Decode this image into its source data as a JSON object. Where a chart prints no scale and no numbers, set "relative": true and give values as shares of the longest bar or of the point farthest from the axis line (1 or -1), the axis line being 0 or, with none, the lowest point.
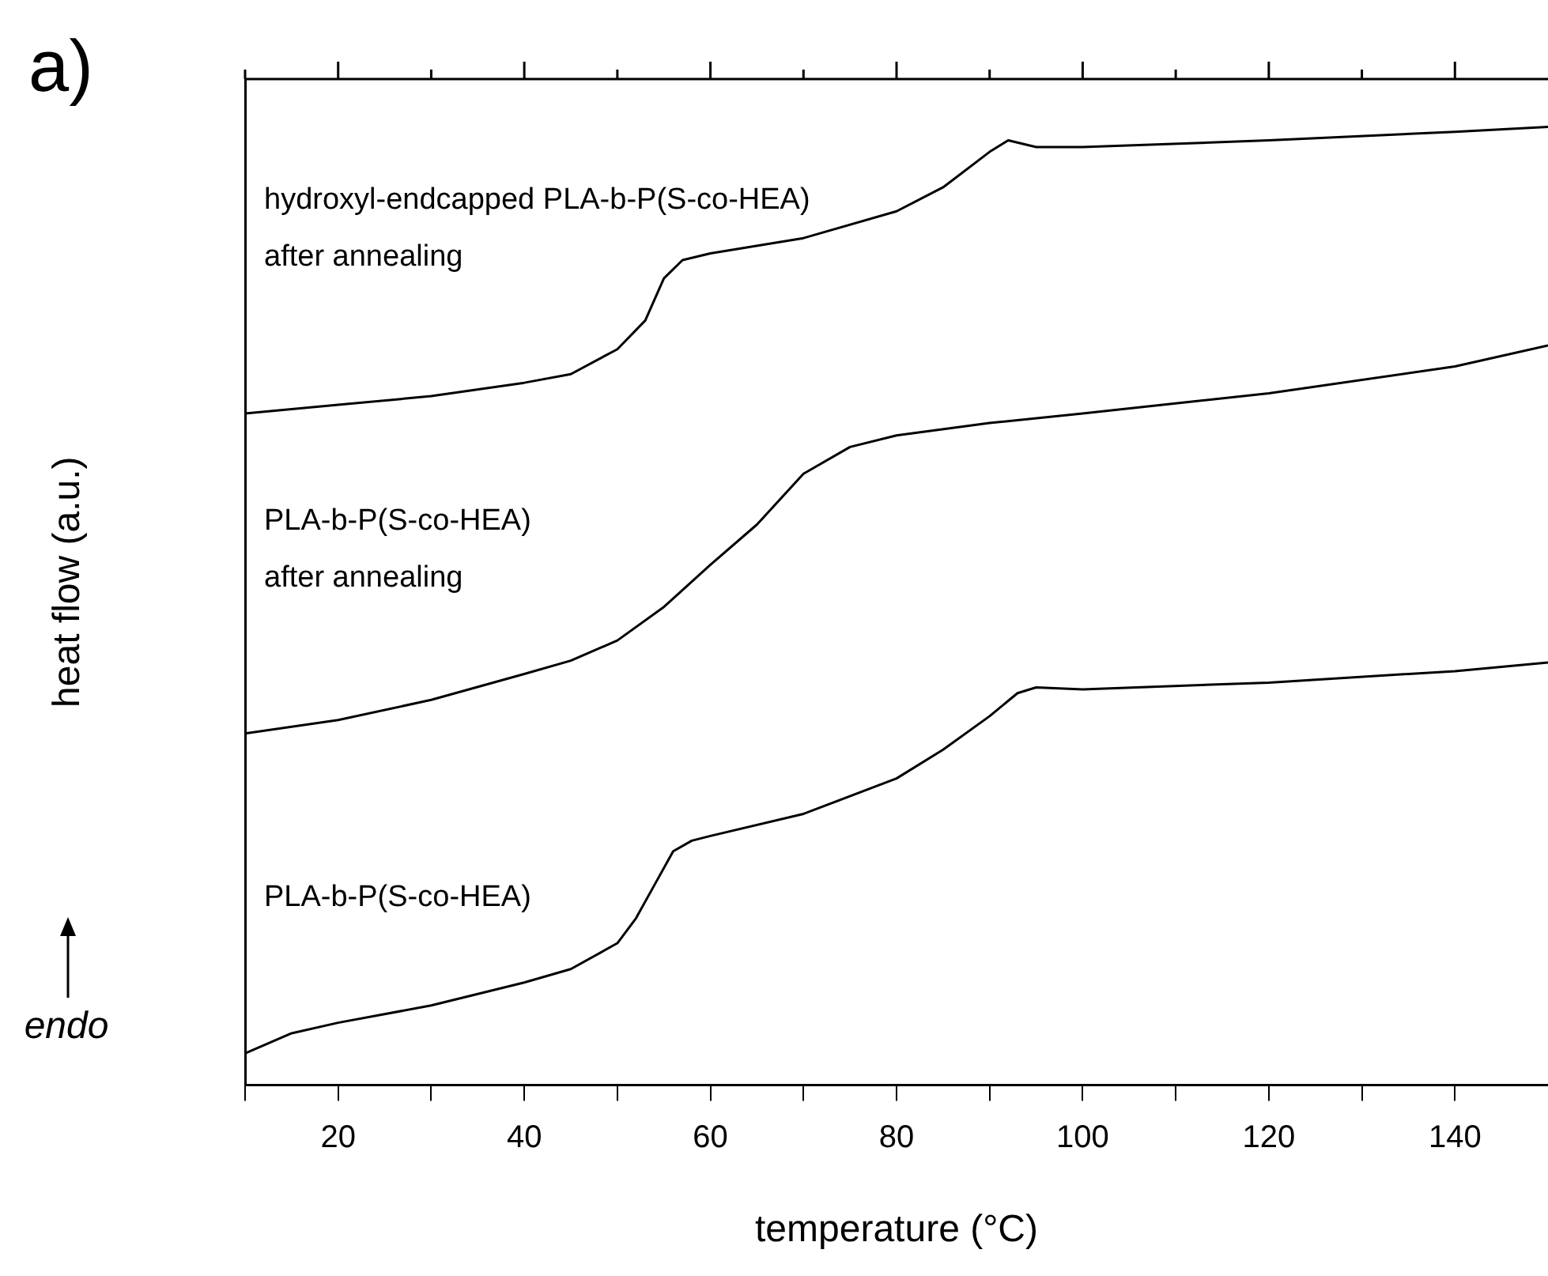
{
  "chart_data": {
    "type": "line",
    "relative": true,
    "xlabel": "temperature (°C)",
    "ylabel": "heat flow (a.u.)",
    "annotations": [
      "a)",
      "endo"
    ],
    "xlim": [
      10,
      150
    ],
    "xticks": [
      {
        "value": 10,
        "label": null
      },
      20,
      {
        "value": 30,
        "label": null
      },
      40,
      {
        "value": 50,
        "label": null
      },
      60,
      {
        "value": 70,
        "label": null
      },
      80,
      {
        "value": 90,
        "label": null
      },
      100,
      {
        "value": 110,
        "label": null
      },
      120,
      {
        "value": 130,
        "label": null
      },
      140
    ],
    "grid": false,
    "legend": false,
    "marker": "none",
    "line_style": "solid",
    "series": [
      {
        "name": "hydroxyl-endcapped PLA-b-P(S-co-HEA)\nafter annealing",
        "color": "#000000",
        "x": [
          10,
          20,
          30,
          40,
          45,
          50,
          53,
          55,
          57,
          60,
          70,
          80,
          85,
          90,
          92,
          95,
          100,
          120,
          140,
          150
        ],
        "values": [
          0.701,
          0.71,
          0.719,
          0.733,
          0.742,
          0.768,
          0.798,
          0.842,
          0.861,
          0.868,
          0.884,
          0.912,
          0.937,
          0.974,
          0.986,
          0.979,
          0.979,
          0.986,
          0.995,
          1
        ]
      },
      {
        "name": "PLA-b-P(S-co-HEA)\nafter annealing",
        "color": "#000000",
        "x": [
          10,
          20,
          30,
          40,
          45,
          50,
          55,
          60,
          65,
          70,
          75,
          80,
          90,
          100,
          120,
          140,
          150
        ],
        "values": [
          0.367,
          0.381,
          0.402,
          0.429,
          0.443,
          0.464,
          0.499,
          0.543,
          0.585,
          0.638,
          0.666,
          0.678,
          0.691,
          0.701,
          0.722,
          0.75,
          0.772
        ]
      },
      {
        "name": "PLA-b-P(S-co-HEA)",
        "color": "#000000",
        "x": [
          10,
          15,
          20,
          30,
          40,
          45,
          50,
          52,
          54,
          56,
          58,
          60,
          70,
          80,
          85,
          90,
          93,
          95,
          100,
          120,
          140,
          150
        ],
        "values": [
          0.033,
          0.054,
          0.065,
          0.083,
          0.107,
          0.121,
          0.148,
          0.174,
          0.209,
          0.244,
          0.255,
          0.26,
          0.283,
          0.32,
          0.35,
          0.385,
          0.409,
          0.415,
          0.413,
          0.42,
          0.432,
          0.441
        ]
      }
    ]
  }
}
